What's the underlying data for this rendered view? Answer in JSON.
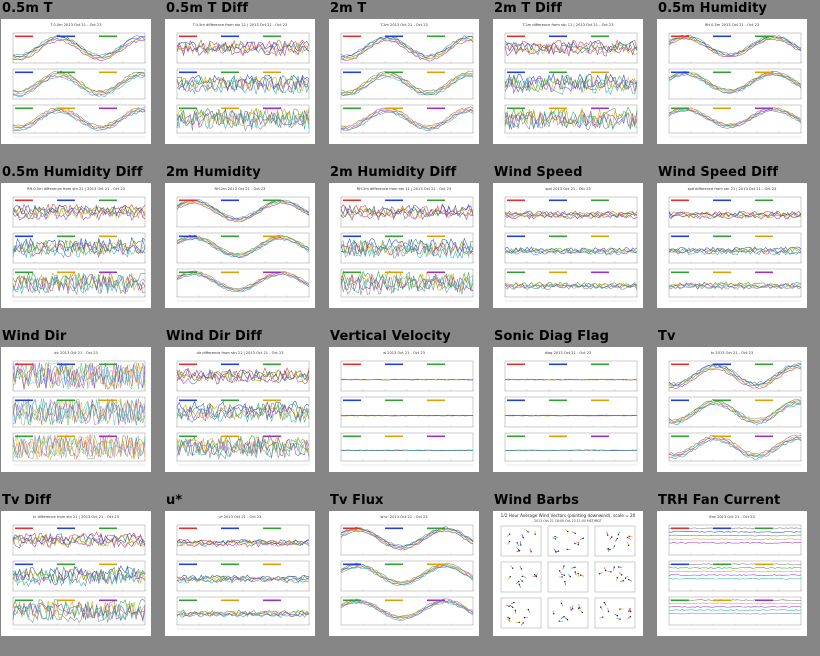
{
  "tiles": [
    {
      "id": "05m-t",
      "title": "0.5m T",
      "thumb_title": "T.0.5m 2013 Oct 21 - Oct 23",
      "kind": "temp"
    },
    {
      "id": "05m-t-diff",
      "title": "0.5m T Diff",
      "thumb_title": "T.0.5m difference from stn 21 | 2013 Oct 21 - Oct 23",
      "kind": "diff"
    },
    {
      "id": "2m-t",
      "title": "2m T",
      "thumb_title": "T.2m 2013 Oct 21 - Oct 23",
      "kind": "temp"
    },
    {
      "id": "2m-t-diff",
      "title": "2m T Diff",
      "thumb_title": "T.2m difference from stn 11 | 2013 Oct 21 - Oct 23",
      "kind": "diff"
    },
    {
      "id": "05m-humidity",
      "title": "0.5m Humidity",
      "thumb_title": "RH.0.5m 2013 Oct 21 - Oct 23",
      "kind": "rh"
    },
    {
      "id": "05m-humidity-diff",
      "title": "0.5m Humidity Diff",
      "thumb_title": "RH.0.5m difference from stn 21 | 2013 Oct 21 - Oct 23",
      "kind": "diff"
    },
    {
      "id": "2m-humidity",
      "title": "2m Humidity",
      "thumb_title": "RH.2m 2013 Oct 21 - Oct 23",
      "kind": "rh"
    },
    {
      "id": "2m-humidity-diff",
      "title": "2m Humidity Diff",
      "thumb_title": "RH.2m difference from stn 11 | 2013 Oct 21 - Oct 23",
      "kind": "diff"
    },
    {
      "id": "wind-speed",
      "title": "Wind Speed",
      "thumb_title": "spd 2013 Oct 21 - Oct 23",
      "kind": "flat"
    },
    {
      "id": "wind-speed-diff",
      "title": "Wind Speed Diff",
      "thumb_title": "spd difference from stn 21 | 2013 Oct 21 - Oct 23",
      "kind": "flat"
    },
    {
      "id": "wind-dir",
      "title": "Wind Dir",
      "thumb_title": "dir 2013 Oct 21 - Oct 23",
      "kind": "dir"
    },
    {
      "id": "wind-dir-diff",
      "title": "Wind Dir Diff",
      "thumb_title": "dir difference from stn 21 | 2013 Oct 21 - Oct 23",
      "kind": "diff"
    },
    {
      "id": "vertical-velocity",
      "title": "Vertical Velocity",
      "thumb_title": "w 2013 Oct 21 - Oct 23",
      "kind": "zero"
    },
    {
      "id": "sonic-diag-flag",
      "title": "Sonic Diag Flag",
      "thumb_title": "diag 2013 Oct 21 - Oct 23",
      "kind": "zero"
    },
    {
      "id": "tv",
      "title": "Tv",
      "thumb_title": "tc 2013 Oct 21 - Oct 23",
      "kind": "temp"
    },
    {
      "id": "tv-diff",
      "title": "Tv Diff",
      "thumb_title": "tc difference from stn 21 | 2013 Oct 21 - Oct 23",
      "kind": "diff"
    },
    {
      "id": "u-star",
      "title": "u*",
      "thumb_title": "u* 2013 Oct 21 - Oct 23",
      "kind": "flat"
    },
    {
      "id": "tv-flux",
      "title": "Tv Flux",
      "thumb_title": "w'tc' 2013 Oct 21 - Oct 23",
      "kind": "rh"
    },
    {
      "id": "wind-barbs",
      "title": "Wind Barbs",
      "thumb_title": "1/2 Hour Average Wind Vectors (pointing downwind), scale = 20",
      "thumb_subtitle": "2013 Oct 21 18:00 Oct 23 11:00 MST/MDT",
      "kind": "barbs"
    },
    {
      "id": "trh-fan-current",
      "title": "TRH Fan Current",
      "thumb_title": "Ifan 2013 Oct 21 - Oct 23",
      "kind": "fan"
    }
  ],
  "colors": {
    "background": "#868686",
    "thumb_bg": "#ffffff",
    "series": [
      "#e03030",
      "#2040e0",
      "#30a030",
      "#e0a000",
      "#a030c0",
      "#20b0b0",
      "#808080",
      "#ff7f00"
    ]
  }
}
